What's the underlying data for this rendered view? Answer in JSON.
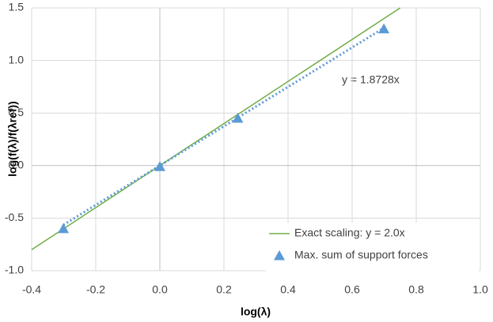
{
  "chart_data": {
    "type": "scatter",
    "xlabel": "log(λ)",
    "ylabel": "log(f(λ)/f(λref))",
    "annotation": "y = 1.8728x",
    "xlim": [
      -0.4,
      1.0
    ],
    "xticks": [
      -0.4,
      -0.2,
      {
        "value": 0,
        "label": "0.0"
      },
      0.2,
      0.4,
      0.6,
      0.8,
      {
        "value": 1,
        "label": "1.0"
      }
    ],
    "ylim": [
      -1.0,
      1.5
    ],
    "yticks": [
      {
        "value": -1,
        "label": "-1.0"
      },
      -0.5,
      {
        "value": 0,
        "label": "0.0"
      },
      0.5,
      {
        "value": 1,
        "label": "1.0"
      },
      1.5
    ],
    "grid": true,
    "legend": "lower right",
    "series": [
      {
        "name": "Exact scaling: y = 2.0x",
        "style": "line",
        "color": "#70ad47",
        "x": [
          -0.4,
          0.75
        ],
        "values": [
          -0.8,
          1.5
        ]
      },
      {
        "name": "Max. sum of support forces",
        "style": "markers",
        "color": "#5b9bd5",
        "x": [
          -0.301,
          0.0,
          0.243,
          0.699
        ],
        "values": [
          -0.6,
          -0.01,
          0.45,
          1.3
        ]
      },
      {
        "style": "dotted",
        "color": "#5b9bd5",
        "x": [
          -0.301,
          0.699
        ],
        "values": [
          -0.564,
          1.309
        ]
      }
    ]
  }
}
